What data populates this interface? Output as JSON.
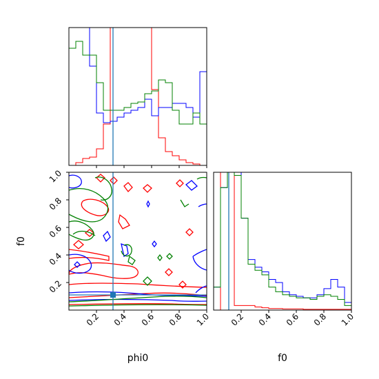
{
  "chart_data": [
    {
      "type": "histogram",
      "panel": "phi0 marginal",
      "xlim": [
        0,
        1
      ],
      "bin_edges": [
        0,
        0.05,
        0.1,
        0.15,
        0.2,
        0.25,
        0.3,
        0.35,
        0.4,
        0.45,
        0.5,
        0.55,
        0.6,
        0.65,
        0.7,
        0.75,
        0.8,
        0.85,
        0.9,
        0.95,
        1.0
      ],
      "series": [
        {
          "color": "#ff0000",
          "values": [
            0.0,
            0.02,
            0.05,
            0.06,
            0.12,
            0.3,
            1.5,
            1.8,
            1.9,
            1.9,
            1.6,
            1.1,
            0.55,
            0.2,
            0.1,
            0.07,
            0.04,
            0.02,
            0.01,
            0.0
          ]
        },
        {
          "color": "#0000ff",
          "values": [
            1.05,
            1.05,
            1.05,
            0.72,
            0.38,
            0.31,
            0.32,
            0.35,
            0.38,
            0.4,
            0.42,
            0.48,
            0.36,
            0.42,
            0.42,
            0.45,
            0.45,
            0.42,
            0.35,
            0.68
          ]
        },
        {
          "color": "#008000",
          "values": [
            0.85,
            0.9,
            0.8,
            0.8,
            0.6,
            0.4,
            0.4,
            0.4,
            0.42,
            0.45,
            0.46,
            0.52,
            0.54,
            0.62,
            0.6,
            0.4,
            0.3,
            0.3,
            0.38,
            0.3
          ]
        }
      ],
      "truth_line": {
        "color": "#1f77b4",
        "x": 0.32
      }
    },
    {
      "type": "contour",
      "panel": "phi0 vs f0",
      "xlim": [
        0,
        1
      ],
      "ylim": [
        0,
        1
      ],
      "xlabel": "phi0",
      "ylabel": "f0",
      "series": [
        {
          "color": "#ff0000"
        },
        {
          "color": "#0000ff"
        },
        {
          "color": "#008000"
        }
      ],
      "truth_point": {
        "color": "#1f77b4",
        "x": 0.32,
        "y": 0.11
      }
    },
    {
      "type": "histogram",
      "panel": "f0 marginal",
      "xlim": [
        0,
        1
      ],
      "xlabel": "f0",
      "bin_edges": [
        0,
        0.05,
        0.1,
        0.15,
        0.2,
        0.25,
        0.3,
        0.35,
        0.4,
        0.45,
        0.5,
        0.55,
        0.6,
        0.65,
        0.7,
        0.75,
        0.8,
        0.85,
        0.9,
        0.95,
        1.0
      ],
      "series": [
        {
          "color": "#ff0000",
          "values": [
            0.0,
            1.05,
            1.05,
            0.03,
            0.03,
            0.03,
            0.02,
            0.015,
            0.01,
            0.01,
            0.008,
            0.008,
            0.008,
            0.005,
            0.005,
            0.005,
            0.005,
            0.005,
            0.005,
            0.005
          ]
        },
        {
          "color": "#0000ff",
          "values": [
            0.15,
            0.8,
            0.92,
            0.9,
            0.6,
            0.33,
            0.28,
            0.25,
            0.2,
            0.18,
            0.12,
            0.1,
            0.09,
            0.08,
            0.08,
            0.1,
            0.14,
            0.2,
            0.15,
            0.05
          ]
        },
        {
          "color": "#008000",
          "values": [
            0.15,
            0.8,
            0.92,
            0.88,
            0.6,
            0.3,
            0.26,
            0.23,
            0.15,
            0.12,
            0.1,
            0.09,
            0.08,
            0.08,
            0.07,
            0.09,
            0.1,
            0.09,
            0.07,
            0.03
          ]
        }
      ],
      "truth_line": {
        "color": "#1f77b4",
        "x": 0.11
      }
    }
  ],
  "axes": {
    "x_ticks": [
      "0.2",
      "0.4",
      "0.6",
      "0.8",
      "1.0"
    ],
    "x_tick_values": [
      0.2,
      0.4,
      0.6,
      0.8,
      1.0
    ],
    "y_ticks": [
      "0.2",
      "0.4",
      "0.6",
      "0.8",
      "1.0"
    ],
    "y_tick_values": [
      0.2,
      0.4,
      0.6,
      0.8,
      1.0
    ],
    "xlabel_left": "phi0",
    "xlabel_right": "f0",
    "ylabel": "f0"
  }
}
